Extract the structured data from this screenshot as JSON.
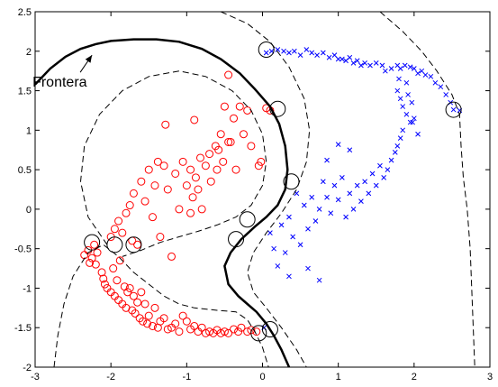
{
  "chart_data": {
    "type": "scatter",
    "title": "",
    "xlabel": "",
    "ylabel": "",
    "xlim": [
      -3,
      3
    ],
    "ylim": [
      -2,
      2.5
    ],
    "xticks": [
      -3,
      -2,
      -1,
      0,
      1,
      2,
      3
    ],
    "yticks": [
      -2,
      -1.5,
      -1,
      -0.5,
      0,
      0.5,
      1,
      1.5,
      2,
      2.5
    ],
    "xtick_labels": [
      "-3",
      "-2",
      "-1",
      "0",
      "1",
      "2",
      "3"
    ],
    "ytick_labels": [
      "-2",
      "-1.5",
      "-1",
      "-0.5",
      "0",
      "0.5",
      "1",
      "1.5",
      "2",
      "2.5"
    ],
    "grid": false,
    "legend": "none",
    "annotation": {
      "text": "Frontera",
      "x": -2.5,
      "y": 1.55,
      "arrow_to": [
        -2.25,
        1.95
      ]
    },
    "colors": {
      "class_circle": "#ff0000",
      "class_cross": "#0000ff",
      "support": "#000000",
      "boundary": "#000000"
    },
    "series": [
      {
        "marker": "circle",
        "color": "#ff0000",
        "points": [
          [
            -2.35,
            -0.58
          ],
          [
            -2.3,
            -0.52
          ],
          [
            -2.28,
            -0.68
          ],
          [
            -2.25,
            -0.62
          ],
          [
            -2.22,
            -0.45
          ],
          [
            -2.2,
            -0.7
          ],
          [
            -2.18,
            -0.55
          ],
          [
            -2.12,
            -0.8
          ],
          [
            -2.1,
            -0.88
          ],
          [
            -2.08,
            -0.95
          ],
          [
            -2.05,
            -1.0
          ],
          [
            -2.0,
            -1.05
          ],
          [
            -1.97,
            -0.75
          ],
          [
            -1.95,
            -1.1
          ],
          [
            -1.92,
            -0.9
          ],
          [
            -1.9,
            -1.15
          ],
          [
            -1.88,
            -0.65
          ],
          [
            -1.85,
            -1.2
          ],
          [
            -1.82,
            -0.98
          ],
          [
            -1.8,
            -1.25
          ],
          [
            -1.78,
            -1.05
          ],
          [
            -1.75,
            -1.0
          ],
          [
            -1.72,
            -1.28
          ],
          [
            -1.7,
            -1.1
          ],
          [
            -1.68,
            -1.32
          ],
          [
            -1.65,
            -1.18
          ],
          [
            -1.62,
            -1.38
          ],
          [
            -1.6,
            -1.05
          ],
          [
            -1.58,
            -1.42
          ],
          [
            -1.55,
            -1.2
          ],
          [
            -1.52,
            -1.45
          ],
          [
            -1.5,
            -1.35
          ],
          [
            -1.45,
            -1.48
          ],
          [
            -1.42,
            -1.25
          ],
          [
            -1.38,
            -1.5
          ],
          [
            -1.35,
            -1.42
          ],
          [
            -1.3,
            -1.38
          ],
          [
            -1.25,
            -1.52
          ],
          [
            -1.2,
            -1.5
          ],
          [
            -1.15,
            -1.45
          ],
          [
            -1.1,
            -1.55
          ],
          [
            -1.05,
            -1.35
          ],
          [
            -1.0,
            -1.42
          ],
          [
            -0.95,
            -1.52
          ],
          [
            -0.9,
            -1.48
          ],
          [
            -0.85,
            -1.55
          ],
          [
            -0.8,
            -1.5
          ],
          [
            -0.75,
            -1.57
          ],
          [
            -0.7,
            -1.55
          ],
          [
            -0.65,
            -1.57
          ],
          [
            -0.6,
            -1.53
          ],
          [
            -0.55,
            -1.57
          ],
          [
            -0.5,
            -1.55
          ],
          [
            -0.45,
            -1.57
          ],
          [
            -0.38,
            -1.52
          ],
          [
            -0.32,
            -1.55
          ],
          [
            -0.28,
            -1.5
          ],
          [
            -0.2,
            -1.55
          ],
          [
            -0.15,
            -1.53
          ],
          [
            -0.08,
            -1.55
          ],
          [
            -2.0,
            -0.35
          ],
          [
            -1.95,
            -0.25
          ],
          [
            -1.9,
            -0.15
          ],
          [
            -1.85,
            -0.3
          ],
          [
            -1.8,
            -0.05
          ],
          [
            -1.75,
            0.05
          ],
          [
            -1.72,
            -0.4
          ],
          [
            -1.7,
            0.2
          ],
          [
            -1.65,
            -0.45
          ],
          [
            -1.6,
            0.35
          ],
          [
            -1.55,
            0.1
          ],
          [
            -1.5,
            0.5
          ],
          [
            -1.45,
            -0.1
          ],
          [
            -1.42,
            0.3
          ],
          [
            -1.38,
            0.6
          ],
          [
            -1.35,
            -0.35
          ],
          [
            -1.3,
            0.55
          ],
          [
            -1.28,
            1.07
          ],
          [
            -1.25,
            0.25
          ],
          [
            -1.2,
            -0.6
          ],
          [
            -1.15,
            0.45
          ],
          [
            -1.1,
            0.0
          ],
          [
            -1.05,
            0.6
          ],
          [
            -1.0,
            0.3
          ],
          [
            -0.95,
            0.5
          ],
          [
            -0.92,
            0.15
          ],
          [
            -0.9,
            1.13
          ],
          [
            -0.88,
            0.4
          ],
          [
            -0.85,
            0.25
          ],
          [
            -0.82,
            0.65
          ],
          [
            -0.8,
            0.0
          ],
          [
            -0.75,
            0.55
          ],
          [
            -0.7,
            0.7
          ],
          [
            -0.68,
            0.35
          ],
          [
            -0.62,
            0.8
          ],
          [
            -0.6,
            0.5
          ],
          [
            -0.58,
            0.75
          ],
          [
            -0.55,
            0.95
          ],
          [
            -0.52,
            0.6
          ],
          [
            -0.5,
            1.3
          ],
          [
            -0.45,
            1.7
          ],
          [
            -0.42,
            0.85
          ],
          [
            -0.38,
            1.15
          ],
          [
            -0.35,
            0.5
          ],
          [
            -0.3,
            1.3
          ],
          [
            -0.25,
            0.95
          ],
          [
            -0.2,
            1.25
          ],
          [
            -0.15,
            0.8
          ],
          [
            -0.05,
            0.55
          ],
          [
            -0.02,
            0.6
          ],
          [
            0.05,
            1.28
          ],
          [
            0.1,
            1.25
          ],
          [
            -0.45,
            0.85
          ],
          [
            -0.95,
            -0.05
          ]
        ]
      },
      {
        "marker": "cross",
        "color": "#0000ff",
        "points": [
          [
            0.05,
            1.98
          ],
          [
            0.12,
            2.0
          ],
          [
            0.2,
            2.02
          ],
          [
            0.28,
            2.0
          ],
          [
            0.35,
            1.98
          ],
          [
            0.42,
            2.0
          ],
          [
            0.5,
            1.95
          ],
          [
            0.58,
            2.02
          ],
          [
            0.65,
            1.98
          ],
          [
            0.72,
            1.95
          ],
          [
            0.8,
            1.98
          ],
          [
            0.88,
            1.92
          ],
          [
            0.95,
            1.95
          ],
          [
            1.0,
            1.9
          ],
          [
            1.05,
            1.9
          ],
          [
            1.1,
            1.88
          ],
          [
            1.15,
            1.92
          ],
          [
            1.2,
            1.85
          ],
          [
            1.25,
            1.88
          ],
          [
            1.3,
            1.82
          ],
          [
            1.35,
            1.85
          ],
          [
            1.42,
            1.82
          ],
          [
            1.5,
            1.85
          ],
          [
            1.58,
            1.82
          ],
          [
            1.62,
            1.75
          ],
          [
            1.7,
            1.78
          ],
          [
            1.78,
            1.82
          ],
          [
            1.82,
            1.78
          ],
          [
            1.88,
            1.82
          ],
          [
            1.95,
            1.8
          ],
          [
            2.0,
            1.78
          ],
          [
            2.05,
            1.72
          ],
          [
            2.1,
            1.75
          ],
          [
            2.15,
            1.7
          ],
          [
            2.22,
            1.68
          ],
          [
            2.28,
            1.6
          ],
          [
            2.35,
            1.55
          ],
          [
            2.42,
            1.45
          ],
          [
            2.48,
            1.35
          ],
          [
            2.52,
            1.26
          ],
          [
            1.78,
            1.5
          ],
          [
            1.82,
            1.4
          ],
          [
            1.85,
            1.3
          ],
          [
            1.9,
            1.2
          ],
          [
            1.92,
            1.45
          ],
          [
            1.95,
            1.1
          ],
          [
            1.97,
            1.35
          ],
          [
            2.0,
            1.15
          ],
          [
            1.9,
            1.6
          ],
          [
            1.85,
            1.0
          ],
          [
            1.82,
            0.9
          ],
          [
            1.78,
            0.8
          ],
          [
            1.75,
            0.72
          ],
          [
            1.7,
            0.62
          ],
          [
            1.65,
            0.5
          ],
          [
            1.6,
            0.4
          ],
          [
            1.55,
            0.55
          ],
          [
            1.5,
            0.3
          ],
          [
            1.45,
            0.45
          ],
          [
            1.4,
            0.2
          ],
          [
            1.35,
            0.35
          ],
          [
            1.3,
            0.1
          ],
          [
            1.25,
            0.3
          ],
          [
            1.2,
            0.0
          ],
          [
            1.15,
            0.2
          ],
          [
            1.1,
            -0.1
          ],
          [
            1.05,
            0.4
          ],
          [
            1.0,
            0.12
          ],
          [
            0.95,
            0.3
          ],
          [
            0.9,
            -0.05
          ],
          [
            0.85,
            0.15
          ],
          [
            0.8,
            0.35
          ],
          [
            0.75,
            0.0
          ],
          [
            0.7,
            -0.15
          ],
          [
            0.65,
            0.15
          ],
          [
            0.6,
            -0.25
          ],
          [
            0.55,
            0.05
          ],
          [
            0.5,
            -0.45
          ],
          [
            0.45,
            0.2
          ],
          [
            0.4,
            -0.35
          ],
          [
            0.35,
            -0.1
          ],
          [
            0.3,
            -0.55
          ],
          [
            0.25,
            -0.2
          ],
          [
            0.2,
            -0.72
          ],
          [
            0.15,
            -0.5
          ],
          [
            0.1,
            -0.3
          ],
          [
            0.6,
            -0.75
          ],
          [
            0.75,
            -0.9
          ],
          [
            0.35,
            -0.85
          ],
          [
            1.0,
            0.82
          ],
          [
            1.8,
            1.65
          ],
          [
            1.98,
            1.1
          ],
          [
            2.05,
            0.95
          ],
          [
            0.85,
            0.62
          ],
          [
            1.15,
            0.75
          ],
          [
            0.02,
            -1.5
          ],
          [
            2.6,
            1.25
          ]
        ]
      }
    ],
    "support_vectors": [
      [
        0.05,
        2.02
      ],
      [
        0.2,
        1.27
      ],
      [
        0.38,
        0.35
      ],
      [
        -0.2,
        -0.13
      ],
      [
        -0.35,
        -0.38
      ],
      [
        -2.25,
        -0.42
      ],
      [
        -1.95,
        -0.45
      ],
      [
        -1.7,
        -0.45
      ],
      [
        -0.05,
        -1.57
      ],
      [
        0.1,
        -1.52
      ],
      [
        2.52,
        1.26
      ]
    ]
  }
}
